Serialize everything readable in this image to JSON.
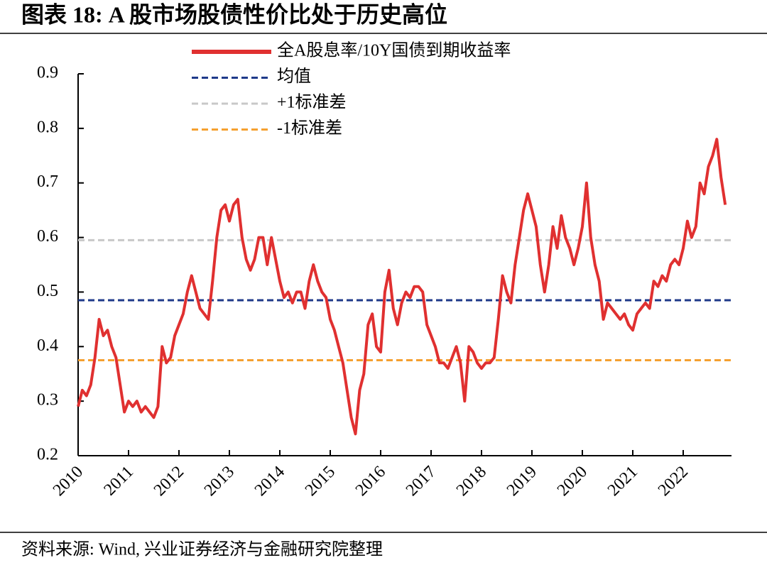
{
  "chart_data": {
    "type": "line",
    "title": "图表 18: A 股市场股债性价比处于历史高位",
    "source": "资料来源: Wind, 兴业证券经济与金融研究院整理",
    "categories": [
      "2010",
      null,
      null,
      null,
      null,
      null,
      null,
      null,
      null,
      null,
      null,
      null,
      "2011",
      null,
      null,
      null,
      null,
      null,
      null,
      null,
      null,
      null,
      null,
      null,
      "2012",
      null,
      null,
      null,
      null,
      null,
      null,
      null,
      null,
      null,
      null,
      null,
      "2013",
      null,
      null,
      null,
      null,
      null,
      null,
      null,
      null,
      null,
      null,
      null,
      "2014",
      null,
      null,
      null,
      null,
      null,
      null,
      null,
      null,
      null,
      null,
      null,
      "2015",
      null,
      null,
      null,
      null,
      null,
      null,
      null,
      null,
      null,
      null,
      null,
      "2016",
      null,
      null,
      null,
      null,
      null,
      null,
      null,
      null,
      null,
      null,
      null,
      "2017",
      null,
      null,
      null,
      null,
      null,
      null,
      null,
      null,
      null,
      null,
      null,
      "2018",
      null,
      null,
      null,
      null,
      null,
      null,
      null,
      null,
      null,
      null,
      null,
      "2019",
      null,
      null,
      null,
      null,
      null,
      null,
      null,
      null,
      null,
      null,
      null,
      "2020",
      null,
      null,
      null,
      null,
      null,
      null,
      null,
      null,
      null,
      null,
      null,
      "2021",
      null,
      null,
      null,
      null,
      null,
      null,
      null,
      null,
      null,
      null,
      null,
      "2022",
      null,
      null,
      null,
      null,
      null,
      null,
      null,
      null,
      null,
      null
    ],
    "series": [
      {
        "name": "全A股息率/10Y国债到期收益率",
        "color": "#e03030",
        "values": [
          0.29,
          0.32,
          0.31,
          0.33,
          0.38,
          0.45,
          0.42,
          0.43,
          0.4,
          0.38,
          0.33,
          0.28,
          0.3,
          0.29,
          0.3,
          0.28,
          0.29,
          0.28,
          0.27,
          0.29,
          0.4,
          0.37,
          0.38,
          0.42,
          0.44,
          0.46,
          0.5,
          0.53,
          0.5,
          0.47,
          0.46,
          0.45,
          0.52,
          0.6,
          0.65,
          0.66,
          0.63,
          0.66,
          0.67,
          0.6,
          0.56,
          0.54,
          0.56,
          0.6,
          0.6,
          0.55,
          0.6,
          0.56,
          0.52,
          0.49,
          0.5,
          0.48,
          0.5,
          0.5,
          0.47,
          0.52,
          0.55,
          0.52,
          0.5,
          0.49,
          0.45,
          0.43,
          0.4,
          0.37,
          0.32,
          0.27,
          0.24,
          0.32,
          0.35,
          0.44,
          0.46,
          0.4,
          0.39,
          0.5,
          0.54,
          0.47,
          0.44,
          0.48,
          0.5,
          0.49,
          0.51,
          0.51,
          0.5,
          0.44,
          0.42,
          0.4,
          0.37,
          0.37,
          0.36,
          0.38,
          0.4,
          0.37,
          0.3,
          0.4,
          0.39,
          0.37,
          0.36,
          0.37,
          0.37,
          0.38,
          0.45,
          0.53,
          0.5,
          0.48,
          0.55,
          0.6,
          0.65,
          0.68,
          0.65,
          0.62,
          0.55,
          0.5,
          0.55,
          0.62,
          0.58,
          0.64,
          0.6,
          0.58,
          0.55,
          0.58,
          0.62,
          0.7,
          0.6,
          0.55,
          0.52,
          0.45,
          0.48,
          0.47,
          0.46,
          0.45,
          0.46,
          0.44,
          0.43,
          0.46,
          0.47,
          0.48,
          0.47,
          0.52,
          0.51,
          0.53,
          0.52,
          0.55,
          0.56,
          0.55,
          0.58,
          0.63,
          0.6,
          0.62,
          0.7,
          0.68,
          0.73,
          0.75,
          0.78,
          0.71,
          0.66
        ]
      }
    ],
    "reference_lines": [
      {
        "name": "均值",
        "color": "#1f3a8a",
        "value": 0.485
      },
      {
        "name": "+1标准差",
        "color": "#c8c8c8",
        "value": 0.595
      },
      {
        "name": "-1标准差",
        "color": "#f5a030",
        "value": 0.375
      }
    ],
    "ylim": [
      0.2,
      0.9
    ],
    "yticks": [
      0.2,
      0.3,
      0.4,
      0.5,
      0.6,
      0.7,
      0.8,
      0.9
    ]
  }
}
